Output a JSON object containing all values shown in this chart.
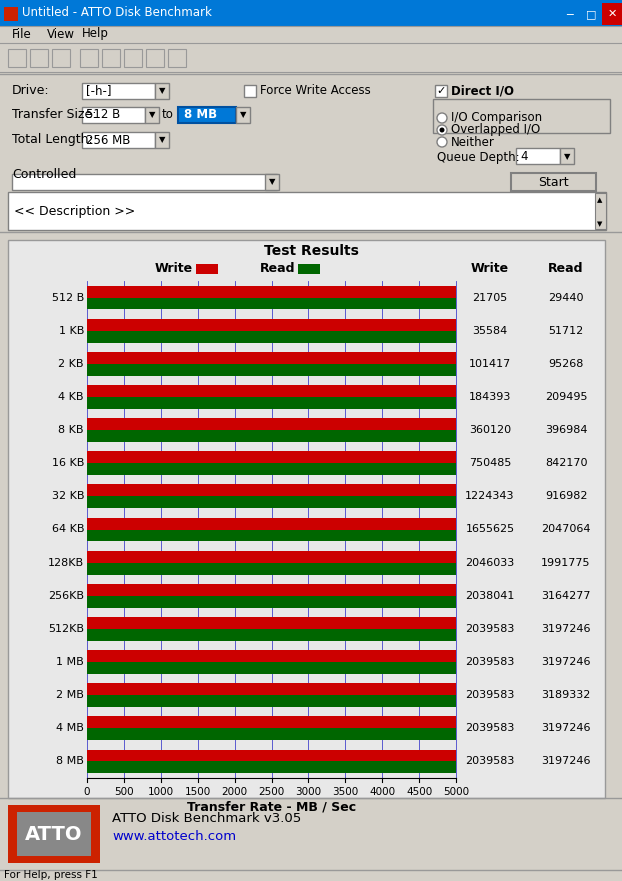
{
  "title": "Untitled - ATTO Disk Benchmark",
  "menu_items": [
    "File",
    "View",
    "Help"
  ],
  "drive_label": "Drive:",
  "drive_value": "[-h-]",
  "transfer_size_label": "Transfer Size:",
  "transfer_size_from": "512 B",
  "transfer_size_to": "8 MB",
  "total_length_label": "Total Length:",
  "total_length_value": "256 MB",
  "force_write": "Force Write Access",
  "direct_io": "Direct I/O",
  "io_comparison": "I/O Comparison",
  "overlapped_io": "Overlapped I/O",
  "neither": "Neither",
  "queue_depth_label": "Queue Depth:",
  "queue_depth_value": "4",
  "controlled_label": "Controlled",
  "start_button": "Start",
  "description_text": "<< Description >>",
  "chart_title": "Test Results",
  "write_label": "Write",
  "read_label": "Read",
  "write_color": "#CC0000",
  "read_color": "#006600",
  "categories": [
    "512 B",
    "1 KB",
    "2 KB",
    "4 KB",
    "8 KB",
    "16 KB",
    "32 KB",
    "64 KB",
    "128KB",
    "256KB",
    "512KB",
    "1 MB",
    "2 MB",
    "4 MB",
    "8 MB"
  ],
  "write_values": [
    21705,
    35584,
    101417,
    184393,
    360120,
    750485,
    1224343,
    1655625,
    2046033,
    2038041,
    2039583,
    2039583,
    2039583,
    2039583,
    2039583
  ],
  "read_values": [
    29440,
    51712,
    95268,
    209495,
    396984,
    842170,
    916982,
    2047064,
    1991775,
    3164277,
    3197246,
    3197246,
    3189332,
    3197246,
    3197246
  ],
  "write_display": [
    "21705",
    "35584",
    "101417",
    "184393",
    "360120",
    "750485",
    "1224343",
    "1655625",
    "2046033",
    "2038041",
    "2039583",
    "2039583",
    "2039583",
    "2039583",
    "2039583"
  ],
  "read_display": [
    "29440",
    "51712",
    "95268",
    "209495",
    "396984",
    "842170",
    "916982",
    "2047064",
    "1991775",
    "3164277",
    "3197246",
    "3197246",
    "3189332",
    "3197246",
    "3197246"
  ],
  "x_ticks": [
    0,
    500,
    1000,
    1500,
    2000,
    2500,
    3000,
    3500,
    4000,
    4500,
    5000
  ],
  "x_max": 5000,
  "x_label": "Transfer Rate - MB / Sec",
  "bg_color": "#D4D0C8",
  "chart_bg": "#E8E8E8",
  "atto_red": "#CC2200",
  "atto_gray": "#888888",
  "atto_brand": "ATTO Disk Benchmark v3.05",
  "atto_url": "www.attotech.com",
  "status_bar": "For Help, press F1"
}
